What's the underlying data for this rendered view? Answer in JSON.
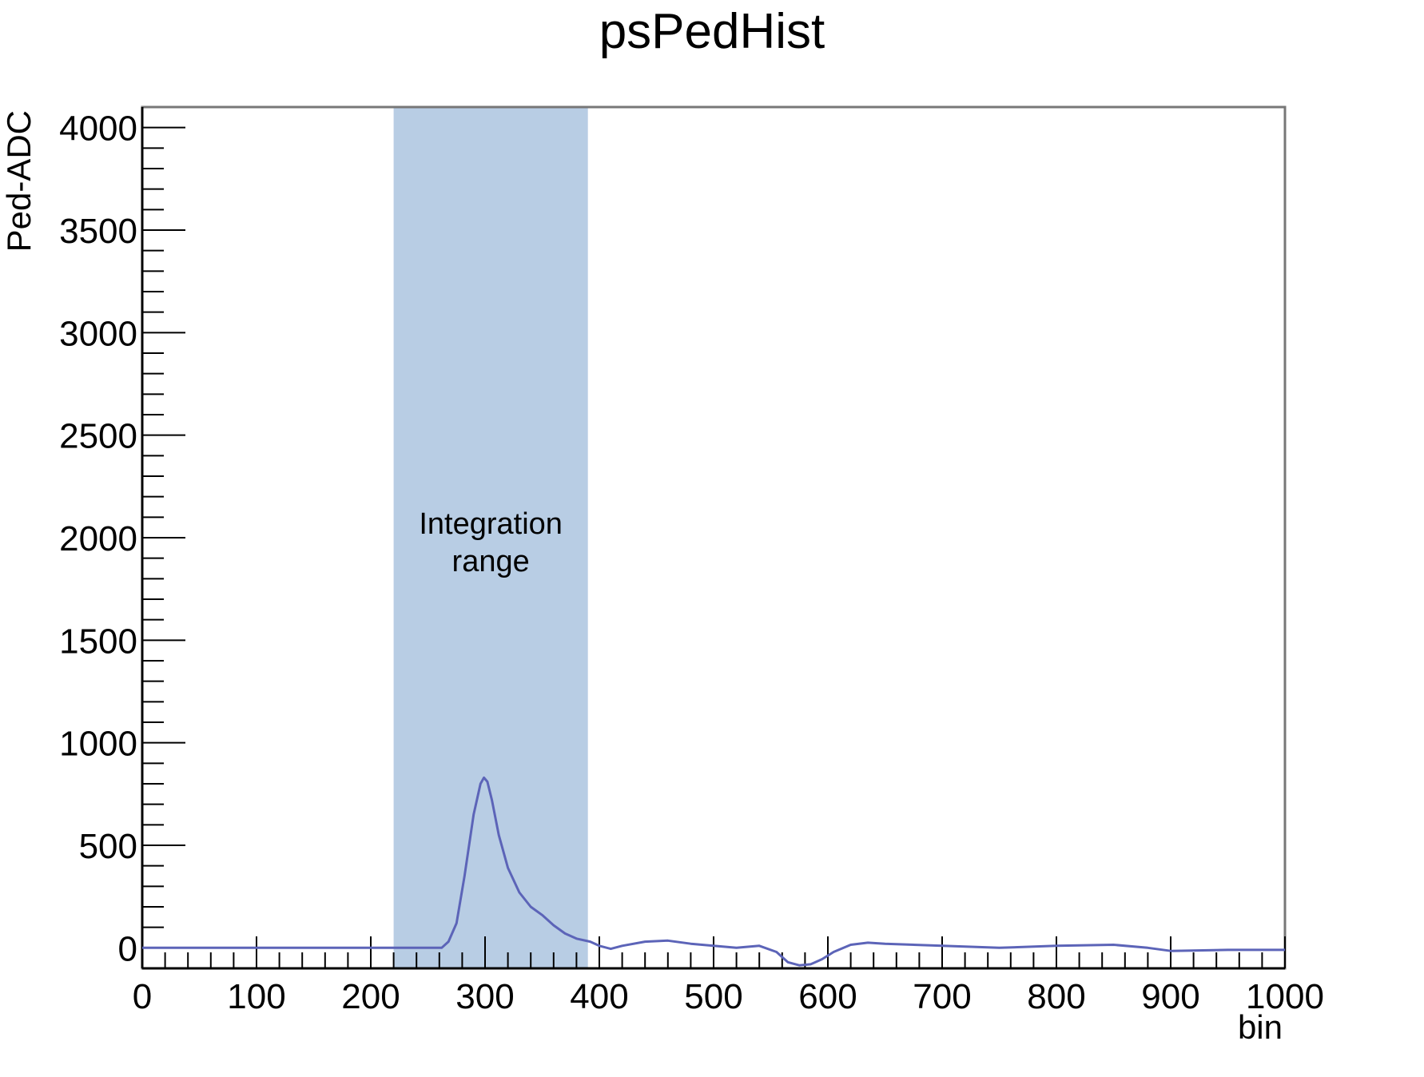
{
  "colors": {
    "series_line": "#5c64b8",
    "band_fill": "#b8cde4",
    "frame": "#777777",
    "axis": "#000000"
  },
  "chart_data": {
    "type": "line",
    "title": "psPedHist",
    "xlabel": "bin",
    "ylabel": "Ped-ADC",
    "xlim": [
      0,
      1000
    ],
    "ylim": [
      -100,
      4100
    ],
    "x_ticks": [
      0,
      100,
      200,
      300,
      400,
      500,
      600,
      700,
      800,
      900,
      1000
    ],
    "y_ticks": [
      0,
      500,
      1000,
      1500,
      2000,
      2500,
      3000,
      3500,
      4000
    ],
    "x_tick_labels": [
      "0",
      "100",
      "200",
      "300",
      "400",
      "500",
      "600",
      "700",
      "800",
      "900",
      "1000"
    ],
    "y_tick_labels": [
      "0",
      "500",
      "1000",
      "1500",
      "2000",
      "2500",
      "3000",
      "3500",
      "4000"
    ],
    "grid": false,
    "legend": "none",
    "shaded_region": {
      "x_start": 220,
      "x_end": 390,
      "label_line1": "Integration",
      "label_line2": "range"
    },
    "series": [
      {
        "x": [
          0,
          50,
          100,
          150,
          200,
          240,
          262,
          268,
          275,
          282,
          290,
          296,
          299,
          302,
          306,
          312,
          320,
          330,
          340,
          350,
          360,
          370,
          380,
          392,
          400,
          410,
          420,
          440,
          460,
          480,
          500,
          520,
          540,
          555,
          565,
          575,
          585,
          595,
          605,
          620,
          635,
          650,
          700,
          750,
          800,
          850,
          880,
          900,
          950,
          1000
        ],
        "y": [
          0,
          0,
          0,
          0,
          0,
          0,
          0,
          30,
          120,
          350,
          650,
          800,
          830,
          810,
          720,
          550,
          390,
          270,
          200,
          160,
          110,
          70,
          45,
          30,
          10,
          -5,
          10,
          30,
          35,
          20,
          10,
          0,
          10,
          -20,
          -70,
          -85,
          -80,
          -55,
          -20,
          15,
          25,
          20,
          10,
          0,
          10,
          15,
          0,
          -15,
          -10,
          -10
        ]
      }
    ]
  }
}
